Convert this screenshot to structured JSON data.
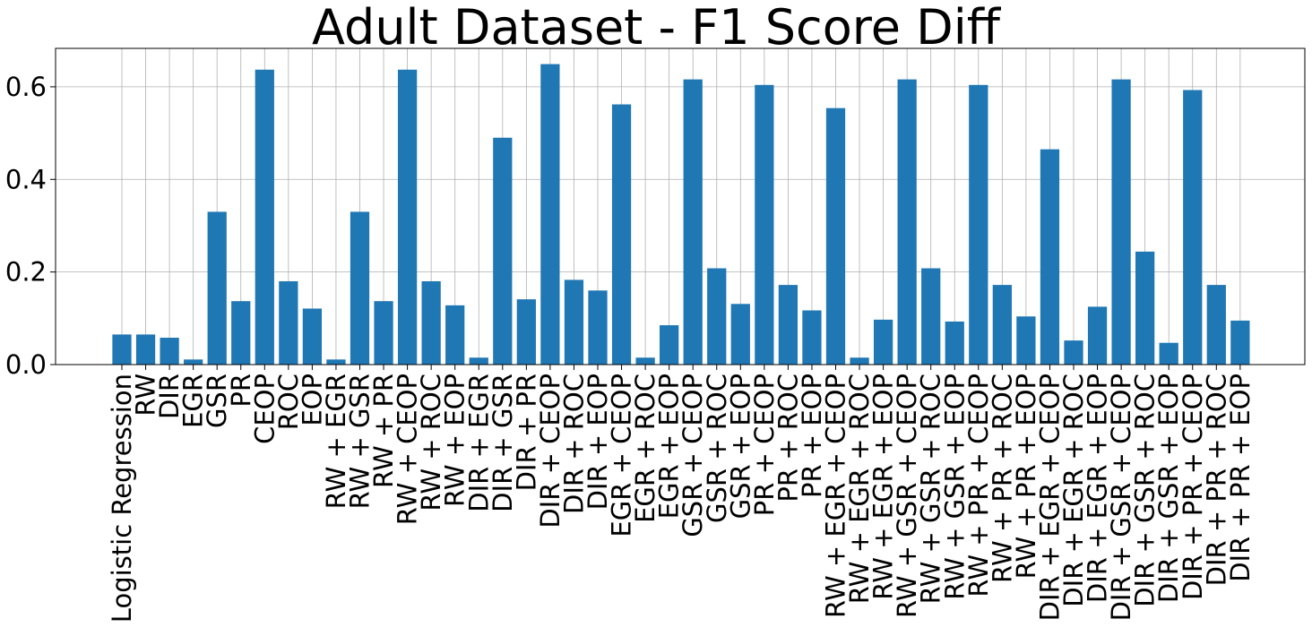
{
  "chart_data": {
    "type": "bar",
    "title": "Adult Dataset - F1 Score Diff",
    "xlabel": "",
    "ylabel": "",
    "ylim": [
      0,
      0.683
    ],
    "yticks": [
      0.0,
      0.2,
      0.4,
      0.6
    ],
    "ytick_labels": [
      "0.0",
      "0.2",
      "0.4",
      "0.6"
    ],
    "grid": true,
    "bar_color": "#1f77b4",
    "categories": [
      "Logistic Regression",
      "RW",
      "DIR",
      "EGR",
      "GSR",
      "PR",
      "CEOP",
      "ROC",
      "EOP",
      "RW + EGR",
      "RW + GSR",
      "RW + PR",
      "RW + CEOP",
      "RW + ROC",
      "RW + EOP",
      "DIR + EGR",
      "DIR + GSR",
      "DIR + PR",
      "DIR + CEOP",
      "DIR + ROC",
      "DIR + EOP",
      "EGR + CEOP",
      "EGR + ROC",
      "EGR + EOP",
      "GSR + CEOP",
      "GSR + ROC",
      "GSR + EOP",
      "PR + CEOP",
      "PR + ROC",
      "PR + EOP",
      "RW + EGR + CEOP",
      "RW + EGR + ROC",
      "RW + EGR + EOP",
      "RW + GSR + CEOP",
      "RW + GSR + ROC",
      "RW + GSR + EOP",
      "RW + PR + CEOP",
      "RW + PR + ROC",
      "RW + PR + EOP",
      "DIR + EGR + CEOP",
      "DIR + EGR + ROC",
      "DIR + EGR + EOP",
      "DIR + GSR + CEOP",
      "DIR + GSR + ROC",
      "DIR + GSR + EOP",
      "DIR + PR + CEOP",
      "DIR + PR + ROC",
      "DIR + PR + EOP"
    ],
    "values": [
      0.065,
      0.065,
      0.058,
      0.011,
      0.33,
      0.137,
      0.637,
      0.18,
      0.121,
      0.011,
      0.33,
      0.137,
      0.637,
      0.18,
      0.128,
      0.015,
      0.49,
      0.141,
      0.649,
      0.183,
      0.16,
      0.562,
      0.015,
      0.085,
      0.616,
      0.208,
      0.131,
      0.604,
      0.172,
      0.117,
      0.554,
      0.015,
      0.097,
      0.616,
      0.208,
      0.093,
      0.604,
      0.172,
      0.104,
      0.465,
      0.052,
      0.125,
      0.616,
      0.244,
      0.047,
      0.593,
      0.172,
      0.095
    ]
  }
}
